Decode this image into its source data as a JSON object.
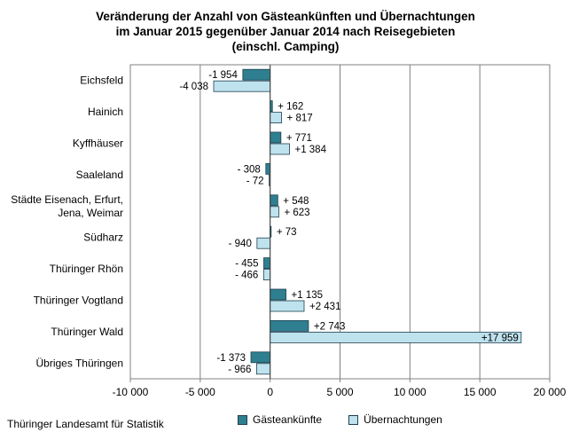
{
  "chart_data": {
    "type": "bar",
    "orientation": "horizontal",
    "title_lines": [
      "Veränderung der Anzahl von Gästeankünften und Übernachtungen",
      "im Januar 2015 gegenüber Januar 2014 nach Reisegebieten",
      "(einschl. Camping)"
    ],
    "categories": [
      "Eichsfeld",
      "Hainich",
      "Kyffhäuser",
      "Saaleland",
      "Städte Eisenach, Erfurt,\nJena, Weimar",
      "Südharz",
      "Thüringer Rhön",
      "Thüringer Vogtland",
      "Thüringer Wald",
      "Übriges Thüringen"
    ],
    "series": [
      {
        "name": "Gästeankünfte",
        "color": "#2e7f8f",
        "values": [
          -1954,
          162,
          771,
          -308,
          548,
          73,
          -455,
          1135,
          2743,
          -1373
        ],
        "labels": [
          "-1 954",
          "+ 162",
          "+ 771",
          "- 308",
          "+ 548",
          "+ 73",
          "- 455",
          "+1 135",
          "+2 743",
          "-1 373"
        ]
      },
      {
        "name": "Übernachtungen",
        "color": "#bfe3ee",
        "values": [
          -4038,
          817,
          1384,
          -72,
          623,
          -940,
          -466,
          2431,
          17959,
          -966
        ],
        "labels": [
          "-4 038",
          "+ 817",
          "+1 384",
          "- 72",
          "+ 623",
          "- 940",
          "- 466",
          "+2 431",
          "+17 959",
          "- 966"
        ]
      }
    ],
    "xlim": [
      -10000,
      20000
    ],
    "xticks": [
      -10000,
      -5000,
      0,
      5000,
      10000,
      15000,
      20000
    ],
    "xtick_labels": [
      "-10 000",
      "-5 000",
      "0",
      "5 000",
      "10 000",
      "15 000",
      "20 000"
    ],
    "grid": true,
    "legend_position": "bottom"
  },
  "source": "Thüringer Landesamt für Statistik"
}
